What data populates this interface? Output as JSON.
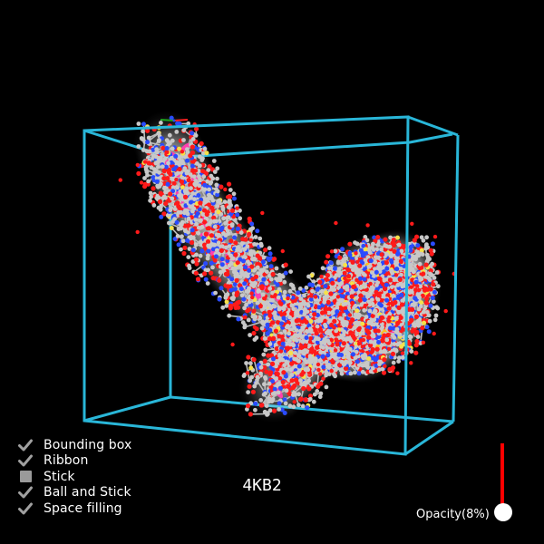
{
  "viewer": {
    "molecule_id": "4KB2",
    "bounding_box_color": "#29b6d8",
    "atom_colors": {
      "carbon": "#c8c8c8",
      "oxygen": "#ff1a1a",
      "nitrogen": "#2a4bff",
      "sulfur": "#f5e14a"
    },
    "ribbon_colors": [
      "#ff3fae",
      "#ffbf1a"
    ]
  },
  "legend": [
    {
      "label": "Bounding box",
      "checked": true,
      "icon": "check-icon"
    },
    {
      "label": "Ribbon",
      "checked": true,
      "icon": "check-icon"
    },
    {
      "label": "Stick",
      "checked": false,
      "icon": "square-icon"
    },
    {
      "label": "Ball and Stick",
      "checked": true,
      "icon": "check-icon"
    },
    {
      "label": "Space filling",
      "checked": true,
      "icon": "check-icon"
    }
  ],
  "opacity": {
    "label": "Opacity(8%)",
    "value_percent": 8,
    "track_color": "#ff0000"
  }
}
